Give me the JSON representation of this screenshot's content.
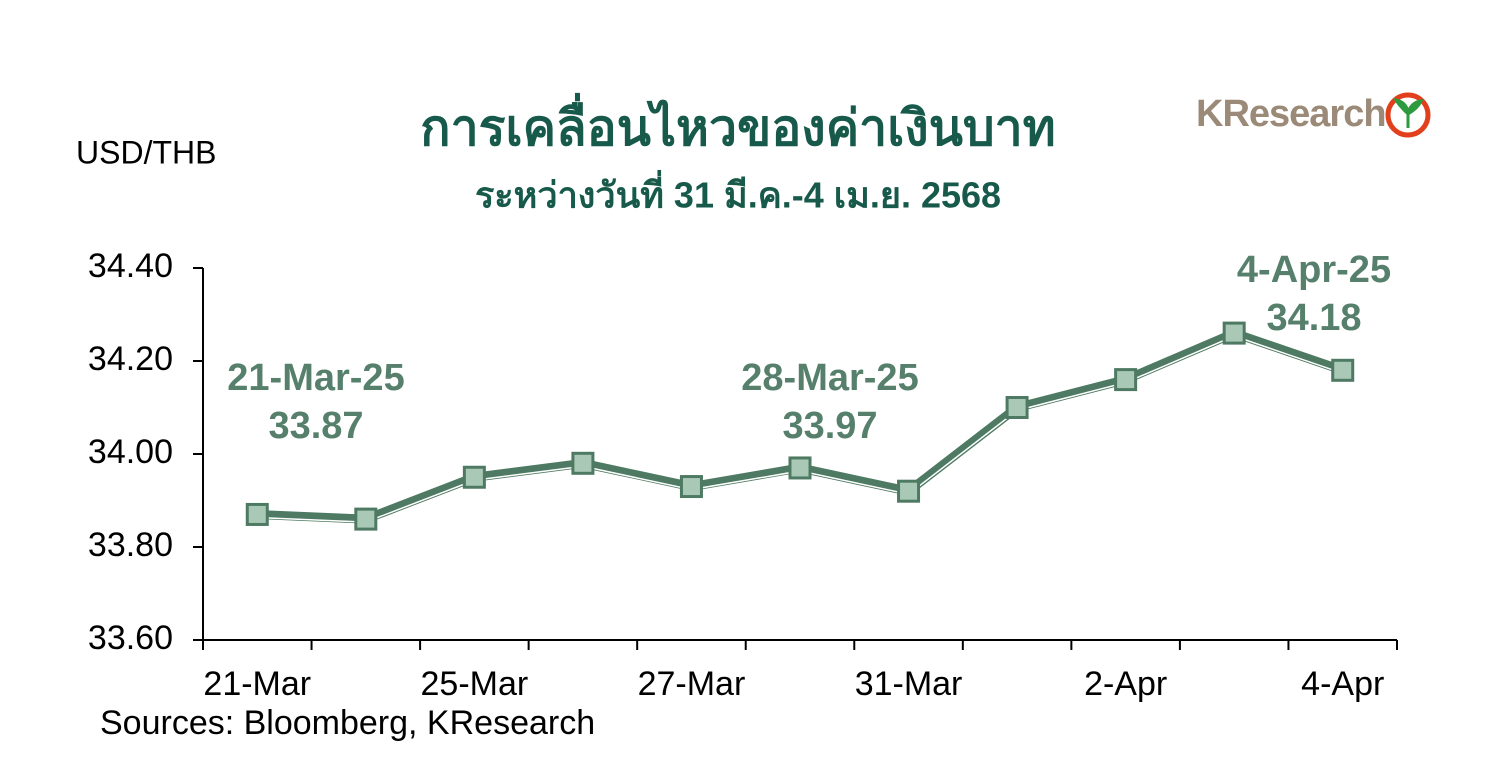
{
  "chart_data": {
    "type": "line",
    "title": "การเคลื่อนไหวของค่าเงินบาท",
    "subtitle": "ระหว่างวันที่ 31 มี.ค.-4 เม.ย. 2568",
    "y_label": "USD/THB",
    "source": "Sources: Bloomberg, KResearch",
    "logo": "KResearch",
    "categories": [
      "21-Mar",
      null,
      "25-Mar",
      null,
      "27-Mar",
      null,
      "31-Mar",
      null,
      "2-Apr",
      null,
      "4-Apr"
    ],
    "values": [
      33.87,
      33.86,
      33.95,
      33.98,
      33.93,
      33.97,
      33.92,
      34.1,
      34.16,
      34.26,
      34.18
    ],
    "color": "#4e7a63",
    "marker_color": "#a9c9b6",
    "ylim": [
      33.6,
      34.4
    ],
    "yticks": [
      {
        "value": 33.6,
        "label": "33.60"
      },
      {
        "value": 33.8,
        "label": "33.80"
      },
      {
        "value": 34,
        "label": "34.00"
      },
      {
        "value": 34.2,
        "label": "34.20"
      },
      {
        "value": 34.4,
        "label": "34.40"
      }
    ],
    "grid": false,
    "annotations": [
      {
        "label": "21-Mar-25",
        "value": 33.87
      },
      {
        "label": "28-Mar-25",
        "value": 33.97
      },
      {
        "label": "4-Apr-25",
        "value": 34.18
      }
    ]
  }
}
